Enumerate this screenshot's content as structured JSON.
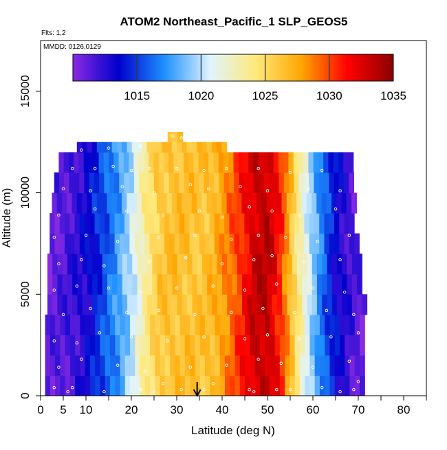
{
  "chart_data": {
    "type": "heatmap",
    "title": "ATOM2 Northeast_Pacific_1 SLP_GEOS5",
    "subtitle_flights": "Flts: 1,2",
    "subtitle_dates": "MMDD: 0126,0129",
    "xlabel": "Latitude (deg N)",
    "ylabel": "Altitude (m)",
    "xlim": [
      0,
      85
    ],
    "ylim": [
      0,
      17500
    ],
    "x_ticks": [
      "0",
      "5",
      "10",
      "20",
      "30",
      "40",
      "50",
      "60",
      "70",
      "80"
    ],
    "x_tick_values": [
      0,
      5,
      10,
      20,
      30,
      40,
      50,
      60,
      70,
      80
    ],
    "y_ticks": [
      "0",
      "5000",
      "10000",
      "15000"
    ],
    "y_tick_values": [
      0,
      5000,
      10000,
      15000
    ],
    "colorbar": {
      "min": 1010,
      "max": 1035,
      "tick_labels": [
        "1015",
        "1020",
        "1025",
        "1030",
        "1035"
      ],
      "tick_values": [
        1015,
        1020,
        1025,
        1030,
        1035
      ],
      "colors": [
        "#8a2be2",
        "#0000cd",
        "#1e90ff",
        "#e0f4ff",
        "#ffe97a",
        "#ffa500",
        "#ff0000",
        "#8b0000"
      ]
    },
    "marker": {
      "label": "down-arrow",
      "latitude": 34.5
    },
    "lat_centers": [
      2,
      5,
      8,
      11,
      14,
      17,
      20,
      23,
      26,
      29,
      32,
      35,
      38,
      41,
      44,
      47,
      50,
      53,
      56,
      59,
      62,
      65,
      68,
      71
    ],
    "profile": [
      1011,
      1011.5,
      1012.3,
      1013.5,
      1015.5,
      1017.5,
      1020,
      1023.5,
      1026,
      1026.5,
      1026.5,
      1026.2,
      1026.8,
      1028.5,
      1030.5,
      1033,
      1033.5,
      1030.5,
      1025,
      1020.5,
      1016.5,
      1013.5,
      1012,
      1011
    ],
    "altitude_bands": [
      {
        "alt": 0,
        "lat_min": 1,
        "lat_max": 70.5
      },
      {
        "alt": 1000,
        "lat_min": 1,
        "lat_max": 70.5
      },
      {
        "alt": 2000,
        "lat_min": 1,
        "lat_max": 71
      },
      {
        "alt": 3000,
        "lat_min": 1,
        "lat_max": 71
      },
      {
        "alt": 4000,
        "lat_min": 1.5,
        "lat_max": 71
      },
      {
        "alt": 5000,
        "lat_min": 1.5,
        "lat_max": 70.5
      },
      {
        "alt": 6000,
        "lat_min": 1.5,
        "lat_max": 70
      },
      {
        "alt": 7000,
        "lat_min": 2,
        "lat_max": 70
      },
      {
        "alt": 8000,
        "lat_min": 2,
        "lat_max": 69
      },
      {
        "alt": 9000,
        "lat_min": 2.5,
        "lat_max": 69
      },
      {
        "alt": 10000,
        "lat_min": 3,
        "lat_max": 68
      },
      {
        "alt": 11000,
        "lat_min": 4,
        "lat_max": 68
      },
      {
        "alt": 12000,
        "lat_min": 8,
        "lat_max": 40
      },
      {
        "alt": 12500,
        "lat_min": 28,
        "lat_max": 31
      }
    ],
    "observation_points": [
      [
        3,
        400
      ],
      [
        6,
        200
      ],
      [
        7,
        400
      ],
      [
        14,
        200
      ],
      [
        22,
        300
      ],
      [
        25,
        200
      ],
      [
        27,
        600
      ],
      [
        31,
        300
      ],
      [
        36,
        300
      ],
      [
        38,
        600
      ],
      [
        46,
        300
      ],
      [
        47,
        200
      ],
      [
        52,
        300
      ],
      [
        55,
        300
      ],
      [
        62,
        400
      ],
      [
        66,
        200
      ],
      [
        69,
        300
      ],
      [
        70,
        700
      ],
      [
        4,
        1400
      ],
      [
        9,
        1800
      ],
      [
        17,
        1500
      ],
      [
        23,
        1200
      ],
      [
        33,
        1400
      ],
      [
        41,
        1500
      ],
      [
        48,
        1800
      ],
      [
        53,
        1600
      ],
      [
        60,
        1400
      ],
      [
        68,
        1700
      ],
      [
        3,
        2700
      ],
      [
        8,
        2600
      ],
      [
        13,
        3100
      ],
      [
        20,
        2900
      ],
      [
        28,
        2700
      ],
      [
        36,
        2900
      ],
      [
        45,
        2800
      ],
      [
        50,
        3000
      ],
      [
        57,
        2800
      ],
      [
        64,
        2900
      ],
      [
        70,
        3100
      ],
      [
        5,
        4000
      ],
      [
        11,
        4300
      ],
      [
        19,
        4100
      ],
      [
        26,
        4200
      ],
      [
        34,
        4000
      ],
      [
        42,
        4100
      ],
      [
        49,
        4300
      ],
      [
        56,
        4100
      ],
      [
        63,
        4200
      ],
      [
        69,
        4000
      ],
      [
        3,
        5200
      ],
      [
        8,
        5400
      ],
      [
        15,
        5300
      ],
      [
        22,
        5100
      ],
      [
        30,
        5300
      ],
      [
        38,
        5400
      ],
      [
        45,
        5200
      ],
      [
        52,
        5500
      ],
      [
        60,
        5300
      ],
      [
        67,
        5100
      ],
      [
        4,
        6500
      ],
      [
        9,
        6700
      ],
      [
        14,
        6400
      ],
      [
        24,
        6600
      ],
      [
        32,
        6800
      ],
      [
        40,
        6500
      ],
      [
        47,
        6700
      ],
      [
        51,
        6900
      ],
      [
        58,
        6600
      ],
      [
        66,
        6700
      ],
      [
        3,
        7800
      ],
      [
        10,
        7900
      ],
      [
        17,
        7600
      ],
      [
        26,
        7800
      ],
      [
        34,
        7900
      ],
      [
        42,
        7700
      ],
      [
        48,
        7900
      ],
      [
        54,
        7800
      ],
      [
        61,
        7600
      ],
      [
        68,
        7900
      ],
      [
        4,
        8900
      ],
      [
        12,
        9200
      ],
      [
        19,
        9100
      ],
      [
        27,
        8900
      ],
      [
        35,
        9100
      ],
      [
        40,
        8800
      ],
      [
        46,
        9300
      ],
      [
        51,
        9100
      ],
      [
        57,
        8900
      ],
      [
        65,
        9200
      ],
      [
        5,
        10200
      ],
      [
        11,
        10100
      ],
      [
        18,
        10300
      ],
      [
        25,
        10000
      ],
      [
        33,
        10400
      ],
      [
        37,
        10200
      ],
      [
        44,
        10300
      ],
      [
        50,
        10100
      ],
      [
        59,
        10200
      ],
      [
        66,
        10100
      ],
      [
        7,
        11200
      ],
      [
        12,
        11200
      ],
      [
        16,
        11300
      ],
      [
        20,
        11100
      ],
      [
        24,
        11200
      ],
      [
        30,
        11200
      ],
      [
        36,
        11100
      ],
      [
        41,
        11200
      ],
      [
        48,
        11200
      ],
      [
        55,
        11000
      ],
      [
        62,
        11100
      ],
      [
        9,
        12100
      ],
      [
        15,
        12200
      ],
      [
        22,
        12300
      ],
      [
        29,
        12800
      ],
      [
        31,
        12700
      ]
    ]
  }
}
